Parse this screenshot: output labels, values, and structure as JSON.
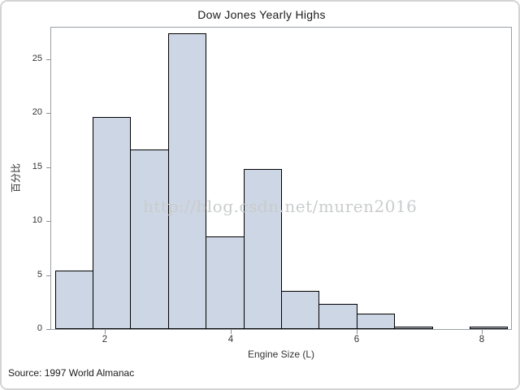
{
  "watermark_text": "http://blog.csdn.net/muren2016",
  "source_note": "Source: 1997 World Almanac",
  "chart_data": {
    "type": "bar",
    "subtype": "histogram",
    "title": "Dow Jones Yearly Highs",
    "xlabel": "Engine Size (L)",
    "ylabel": "百分比",
    "bin_edges": [
      1.2,
      1.8,
      2.4,
      3.0,
      3.6,
      4.2,
      4.8,
      5.4,
      6.0,
      6.6,
      7.2,
      7.8,
      8.4
    ],
    "values_percent": [
      5.4,
      19.6,
      16.6,
      27.4,
      8.6,
      14.8,
      3.5,
      2.3,
      1.4,
      0.2,
      0,
      0.2
    ],
    "x_ticks": [
      2,
      4,
      6,
      8
    ],
    "y_ticks": [
      0,
      5,
      10,
      15,
      20,
      25
    ],
    "xlim": [
      1.14,
      8.46
    ],
    "ylim": [
      0,
      27.9
    ],
    "grid": false,
    "legend": false,
    "colors": {
      "bar_fill": "#CDD6E4",
      "bar_border": "#000000",
      "frame_border": "#9B9FA3",
      "tick": "#8A8E92",
      "text": "#333333",
      "watermark": "#C9CCCE"
    }
  }
}
